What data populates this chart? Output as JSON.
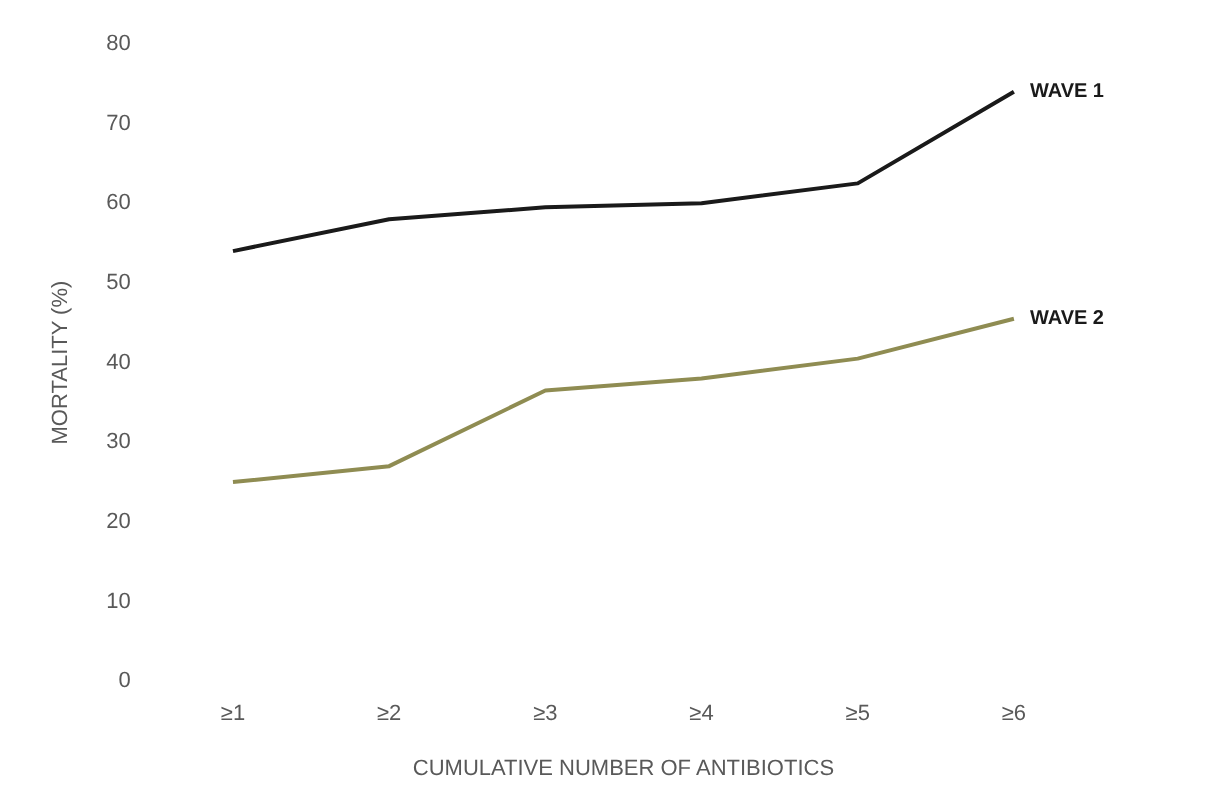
{
  "chart_data": {
    "type": "line",
    "xlabel": "CUMULATIVE NUMBER OF ANTIBIOTICS",
    "ylabel": "MORTALITY (%)",
    "categories": [
      "≥1",
      "≥2",
      "≥3",
      "≥4",
      "≥5",
      "≥6"
    ],
    "series": [
      {
        "name": "WAVE 1",
        "color": "#1a1a1a",
        "values": [
          54,
          58,
          59.5,
          60,
          62.5,
          74
        ]
      },
      {
        "name": "WAVE 2",
        "color": "#8f8c52",
        "values": [
          25,
          27,
          36.5,
          38,
          40.5,
          45.5
        ]
      }
    ],
    "ylim": [
      0,
      80
    ],
    "yticks": [
      0,
      10,
      20,
      30,
      40,
      50,
      60,
      70,
      80
    ],
    "grid": false,
    "legend": false,
    "marker": "none",
    "line_style": "solid"
  }
}
